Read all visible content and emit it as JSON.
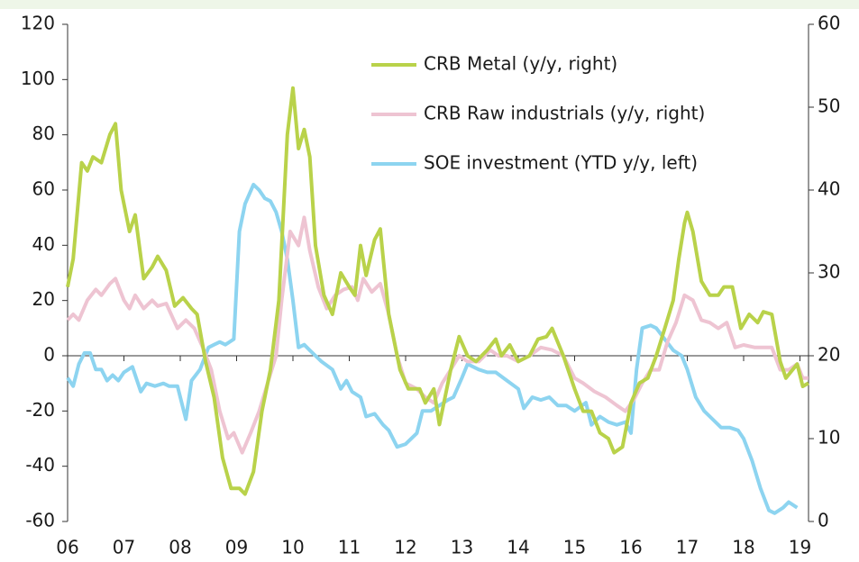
{
  "chart_data": {
    "type": "line",
    "xlim": [
      2006,
      2019.2
    ],
    "xticks": [
      {
        "value": 2006,
        "label": "06"
      },
      {
        "value": 2007,
        "label": "07"
      },
      {
        "value": 2008,
        "label": "08"
      },
      {
        "value": 2009,
        "label": "09"
      },
      {
        "value": 2010,
        "label": "10"
      },
      {
        "value": 2011,
        "label": "11"
      },
      {
        "value": 2012,
        "label": "12"
      },
      {
        "value": 2013,
        "label": "13"
      },
      {
        "value": 2014,
        "label": "14"
      },
      {
        "value": 2015,
        "label": "15"
      },
      {
        "value": 2016,
        "label": "16"
      },
      {
        "value": 2017,
        "label": "17"
      },
      {
        "value": 2018,
        "label": "18"
      },
      {
        "value": 2019,
        "label": "19"
      }
    ],
    "ylim": [
      -60,
      120
    ],
    "yticks": [
      -60,
      -40,
      -20,
      0,
      20,
      40,
      60,
      80,
      100,
      120
    ],
    "y2lim": [
      0,
      60
    ],
    "y2ticks": [
      0,
      10,
      20,
      30,
      40,
      50,
      60
    ],
    "series": [
      {
        "name": "CRB Metal (y/y, right)",
        "color": "#b9d24a",
        "axis": "y2",
        "x": [
          2006.0,
          2006.1,
          2006.25,
          2006.35,
          2006.45,
          2006.6,
          2006.75,
          2006.85,
          2006.95,
          2007.1,
          2007.2,
          2007.35,
          2007.5,
          2007.6,
          2007.75,
          2007.9,
          2008.05,
          2008.2,
          2008.3,
          2008.45,
          2008.6,
          2008.75,
          2008.9,
          2009.05,
          2009.15,
          2009.3,
          2009.45,
          2009.6,
          2009.75,
          2009.9,
          2010.0,
          2010.1,
          2010.2,
          2010.3,
          2010.4,
          2010.55,
          2010.7,
          2010.85,
          2011.0,
          2011.1,
          2011.2,
          2011.3,
          2011.45,
          2011.55,
          2011.7,
          2011.9,
          2012.05,
          2012.25,
          2012.35,
          2012.5,
          2012.6,
          2012.8,
          2012.95,
          2013.1,
          2013.25,
          2013.45,
          2013.6,
          2013.7,
          2013.85,
          2014.0,
          2014.2,
          2014.35,
          2014.5,
          2014.6,
          2014.8,
          2015.0,
          2015.15,
          2015.3,
          2015.45,
          2015.6,
          2015.7,
          2015.85,
          2016.0,
          2016.15,
          2016.3,
          2016.45,
          2016.6,
          2016.75,
          2016.85,
          2016.95,
          2017.0,
          2017.1,
          2017.25,
          2017.4,
          2017.55,
          2017.65,
          2017.8,
          2017.95,
          2018.1,
          2018.25,
          2018.35,
          2018.5,
          2018.65,
          2018.75,
          2018.95,
          2019.05,
          2019.15
        ],
        "values": [
          28.3,
          31.7,
          43.3,
          42.3,
          44,
          43.3,
          46.7,
          48,
          40,
          35,
          37,
          29.3,
          30.7,
          32,
          30.3,
          26,
          27,
          25.7,
          25,
          19.3,
          15,
          7.7,
          4,
          4,
          3.3,
          6,
          13.3,
          18.3,
          26.7,
          46.7,
          52.3,
          45,
          47.3,
          44,
          33.3,
          27.3,
          25,
          30,
          28.3,
          27.3,
          33.3,
          29.7,
          34,
          35.3,
          25,
          18.3,
          16,
          16,
          14.3,
          16,
          11.7,
          18.3,
          22.3,
          20,
          19.3,
          20.7,
          22,
          20,
          21.3,
          19.3,
          20,
          22,
          22.3,
          23.3,
          20,
          16,
          13.3,
          13.3,
          10.7,
          10,
          8.3,
          9,
          14.3,
          16.7,
          17.3,
          20,
          23.3,
          26.7,
          31.7,
          36,
          37.3,
          35,
          29,
          27.3,
          27.3,
          28.3,
          28.3,
          23.3,
          25,
          24,
          25.3,
          25,
          19.3,
          17.3,
          19,
          16.3,
          16.7
        ]
      },
      {
        "name": "CRB Raw industrials (y/y, right)",
        "color": "#eec4d2",
        "axis": "y2",
        "x": [
          2006.0,
          2006.1,
          2006.2,
          2006.35,
          2006.5,
          2006.6,
          2006.75,
          2006.85,
          2007.0,
          2007.1,
          2007.2,
          2007.35,
          2007.5,
          2007.6,
          2007.75,
          2007.95,
          2008.1,
          2008.25,
          2008.4,
          2008.55,
          2008.7,
          2008.85,
          2008.95,
          2009.1,
          2009.25,
          2009.4,
          2009.55,
          2009.7,
          2009.8,
          2009.95,
          2010.1,
          2010.2,
          2010.3,
          2010.45,
          2010.6,
          2010.75,
          2010.9,
          2011.05,
          2011.15,
          2011.25,
          2011.4,
          2011.55,
          2011.7,
          2011.85,
          2012.0,
          2012.2,
          2012.35,
          2012.5,
          2012.65,
          2012.8,
          2012.95,
          2013.1,
          2013.3,
          2013.5,
          2013.65,
          2013.8,
          2014.0,
          2014.2,
          2014.4,
          2014.6,
          2014.8,
          2015.0,
          2015.15,
          2015.35,
          2015.55,
          2015.75,
          2015.9,
          2016.05,
          2016.2,
          2016.35,
          2016.5,
          2016.65,
          2016.8,
          2016.95,
          2017.1,
          2017.25,
          2017.4,
          2017.55,
          2017.7,
          2017.85,
          2018.0,
          2018.2,
          2018.35,
          2018.5,
          2018.65,
          2018.8,
          2018.95,
          2019.05,
          2019.15
        ],
        "values": [
          24.3,
          25,
          24.3,
          26.7,
          28,
          27.3,
          28.7,
          29.3,
          26.7,
          25.7,
          27.3,
          25.7,
          26.7,
          26,
          26.3,
          23.3,
          24.3,
          23.3,
          21,
          18.3,
          13.3,
          10,
          10.7,
          8.3,
          10.7,
          13.3,
          16.7,
          20,
          26.7,
          35,
          33.3,
          36.7,
          32.7,
          28.3,
          25.7,
          27.3,
          28,
          28.3,
          26.7,
          29.3,
          27.7,
          28.7,
          25,
          20,
          16.7,
          16,
          15,
          14.3,
          16.7,
          18.3,
          20,
          19.3,
          19.3,
          20.7,
          20,
          20,
          19.3,
          20,
          21,
          20.7,
          20,
          17.3,
          16.7,
          15.7,
          15,
          14,
          13.3,
          14.7,
          16.7,
          18.3,
          18.3,
          21.7,
          24,
          27.3,
          26.7,
          24.3,
          24,
          23.3,
          24,
          21,
          21.3,
          21,
          21,
          21,
          18.3,
          18.3,
          19,
          17.3,
          17.3
        ]
      },
      {
        "name": "SOE investment (YTD y/y, left)",
        "color": "#8dd4f0",
        "x": [
          2006.0,
          2006.1,
          2006.2,
          2006.3,
          2006.4,
          2006.5,
          2006.6,
          2006.7,
          2006.8,
          2006.9,
          2007.0,
          2007.15,
          2007.3,
          2007.4,
          2007.55,
          2007.7,
          2007.8,
          2007.95,
          2008.1,
          2008.2,
          2008.35,
          2008.5,
          2008.6,
          2008.7,
          2008.8,
          2008.95,
          2009.05,
          2009.15,
          2009.3,
          2009.4,
          2009.5,
          2009.6,
          2009.7,
          2009.8,
          2009.9,
          2010.0,
          2010.1,
          2010.2,
          2010.3,
          2010.4,
          2010.5,
          2010.7,
          2010.85,
          2010.95,
          2011.05,
          2011.2,
          2011.3,
          2011.45,
          2011.6,
          2011.7,
          2011.85,
          2012.0,
          2012.2,
          2012.3,
          2012.45,
          2012.6,
          2012.75,
          2012.85,
          2013.0,
          2013.1,
          2013.3,
          2013.45,
          2013.6,
          2013.8,
          2014.0,
          2014.1,
          2014.25,
          2014.4,
          2014.55,
          2014.7,
          2014.85,
          2015.0,
          2015.2,
          2015.3,
          2015.45,
          2015.6,
          2015.75,
          2015.9,
          2016.0,
          2016.1,
          2016.2,
          2016.35,
          2016.45,
          2016.6,
          2016.75,
          2016.9,
          2017.0,
          2017.15,
          2017.3,
          2017.45,
          2017.6,
          2017.75,
          2017.9,
          2018.0,
          2018.15,
          2018.3,
          2018.45,
          2018.55,
          2018.7,
          2018.8,
          2018.95
        ],
        "values": [
          -8,
          -11,
          -3,
          1,
          1,
          -5,
          -5,
          -9,
          -7,
          -9,
          -6,
          -4,
          -13,
          -10,
          -11,
          -10,
          -11,
          -11,
          -23,
          -9,
          -5,
          3,
          4,
          5,
          4,
          6,
          45,
          55,
          62,
          60,
          57,
          56,
          52,
          45,
          35,
          20,
          3,
          4,
          2,
          0,
          -2,
          -5,
          -12,
          -9,
          -13,
          -15,
          -22,
          -21,
          -25,
          -27,
          -33,
          -32,
          -28,
          -20,
          -20,
          -18,
          -16,
          -15,
          -8,
          -3,
          -5,
          -6,
          -6,
          -9,
          -12,
          -19,
          -15,
          -16,
          -15,
          -18,
          -18,
          -20,
          -17,
          -25,
          -22,
          -24,
          -25,
          -24,
          -28,
          -5,
          10,
          11,
          10,
          6,
          2,
          0,
          -5,
          -15,
          -20,
          -23,
          -26,
          -26,
          -27,
          -30,
          -38,
          -48,
          -56,
          -57,
          -55,
          -53,
          -55
        ]
      }
    ]
  }
}
